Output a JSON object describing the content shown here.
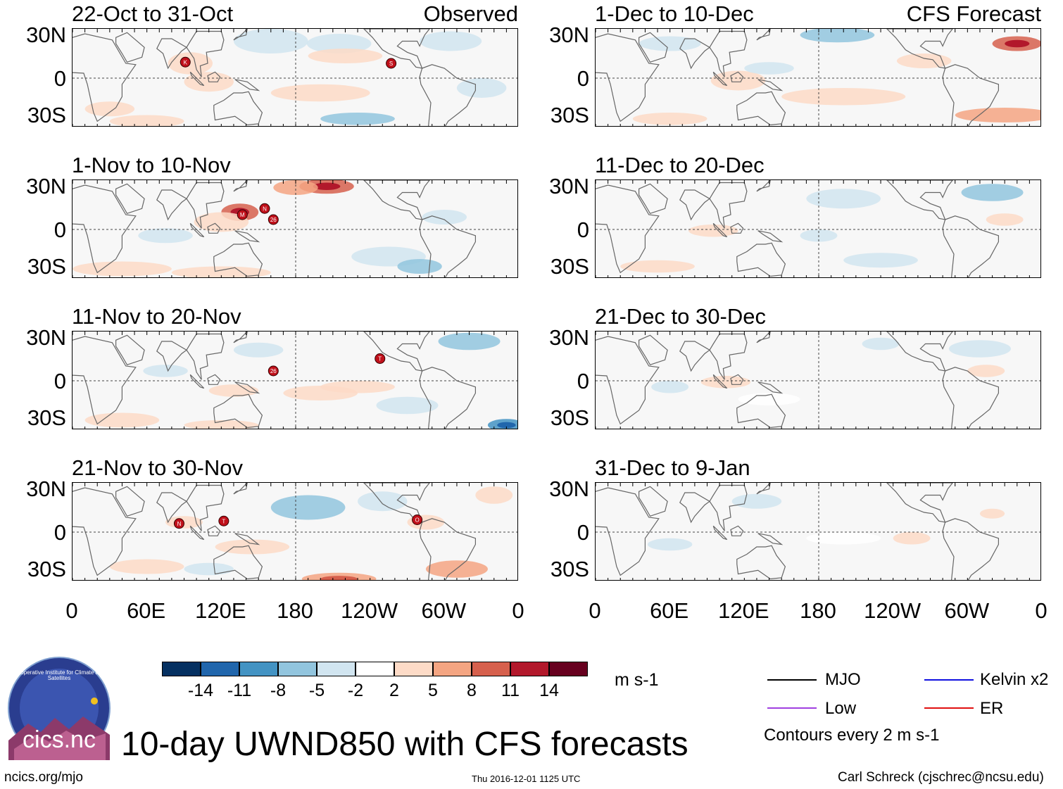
{
  "chart_data": {
    "type": "heatmap",
    "title": "10-day UWND850 with CFS forecasts",
    "variable": "UWND850",
    "units": "m s-1",
    "x_ticks": [
      "0",
      "60E",
      "120E",
      "180",
      "120W",
      "60W",
      "0"
    ],
    "y_ticks": [
      "30N",
      "0",
      "30S"
    ],
    "columns": [
      {
        "label": "Observed",
        "panels": [
          "22-Oct to 31-Oct",
          "1-Nov to 10-Nov",
          "11-Nov to 20-Nov",
          "21-Nov to 30-Nov"
        ]
      },
      {
        "label": "CFS Forecast",
        "panels": [
          "1-Dec to 10-Dec",
          "11-Dec to 20-Dec",
          "21-Dec to 30-Dec",
          "31-Dec to 9-Jan"
        ]
      }
    ],
    "colorbar": {
      "labels": [
        "-14",
        "-11",
        "-8",
        "-5",
        "-2",
        "2",
        "5",
        "8",
        "11",
        "14"
      ],
      "colors": [
        "#053061",
        "#2166ac",
        "#4393c3",
        "#92c5de",
        "#d1e5f0",
        "#ffffff",
        "#fddbc7",
        "#f4a582",
        "#d6604d",
        "#b2182b",
        "#67001f"
      ]
    },
    "storm_markers": [
      {
        "panel": 0,
        "letter": "K"
      },
      {
        "panel": 0,
        "letter": "S"
      },
      {
        "panel": 1,
        "letter": "M"
      },
      {
        "panel": 1,
        "letter": "N"
      },
      {
        "panel": 1,
        "letter": "26"
      },
      {
        "panel": 2,
        "letter": "26"
      },
      {
        "panel": 2,
        "letter": "T"
      },
      {
        "panel": 3,
        "letter": "N"
      },
      {
        "panel": 3,
        "letter": "T"
      },
      {
        "panel": 3,
        "letter": "O"
      }
    ],
    "legend": [
      {
        "label": "MJO",
        "color": "#000000"
      },
      {
        "label": "Kelvin x2",
        "color": "#1010e0"
      },
      {
        "label": "Low",
        "color": "#a040e0"
      },
      {
        "label": "ER",
        "color": "#e01010"
      }
    ],
    "contour_note": "Contours every 2 m s-1"
  },
  "logo": {
    "name": "Cooperative Institute for Climate and Satellites",
    "text": "cics.nc"
  },
  "footer": {
    "left": "ncics.org/mjo",
    "center": "Thu 2016-12-01 1125 UTC",
    "right": "Carl Schreck (cjschrec@ncsu.edu)"
  }
}
